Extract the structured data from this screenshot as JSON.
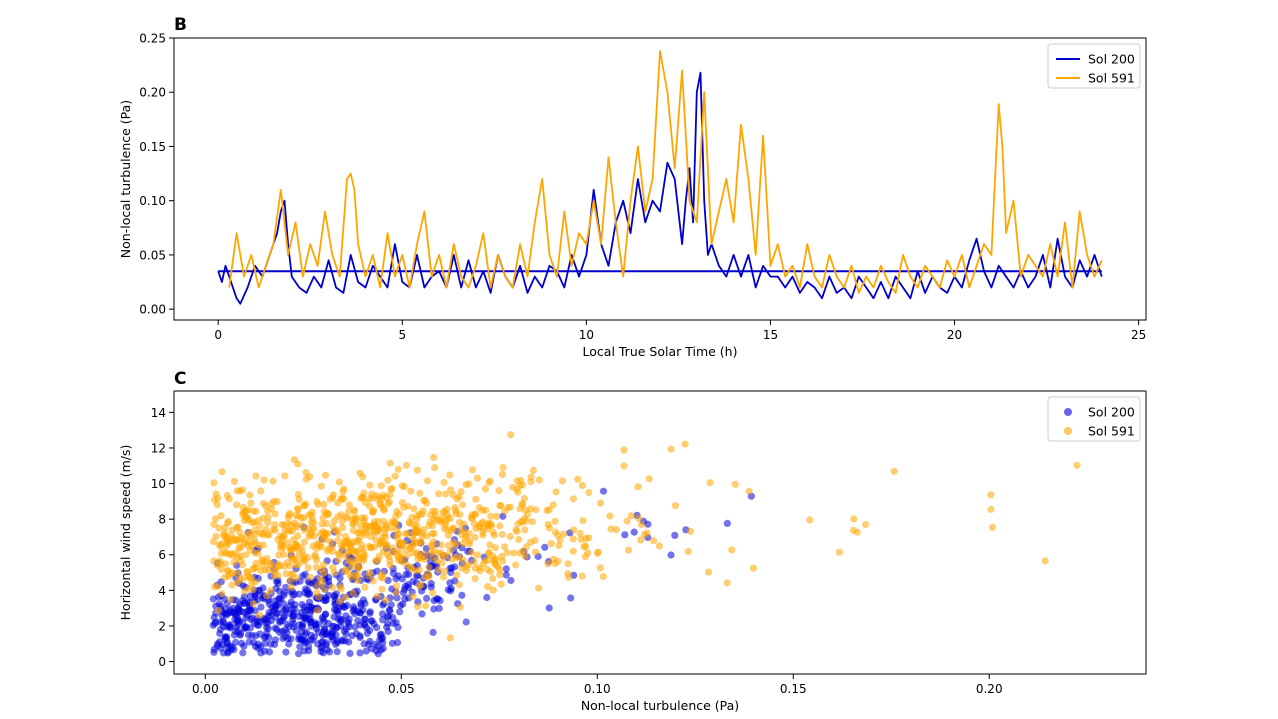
{
  "chart_data": [
    {
      "panel_label": "B",
      "type": "line",
      "xlabel": "Local True Solar Time (h)",
      "ylabel": "Non-local turbulence (Pa)",
      "xlim": [
        -1.2,
        25.2
      ],
      "ylim": [
        -0.01,
        0.25
      ],
      "xticks": [
        "0",
        "5",
        "10",
        "15",
        "20",
        "25"
      ],
      "yticks": [
        "0.00",
        "0.05",
        "0.10",
        "0.15",
        "0.20",
        "0.25"
      ],
      "grid": false,
      "legend_position": "top-right",
      "series": [
        {
          "name": "Sol 200",
          "color": "#0000cc",
          "x": [
            0,
            0.1,
            0.2,
            0.3,
            0.4,
            0.5,
            0.6,
            0.8,
            1.0,
            1.2,
            1.4,
            1.6,
            1.7,
            1.8,
            1.9,
            2.0,
            2.2,
            2.4,
            2.6,
            2.8,
            3.0,
            3.2,
            3.4,
            3.6,
            3.8,
            4.0,
            4.2,
            4.4,
            4.6,
            4.8,
            5.0,
            5.2,
            5.4,
            5.6,
            5.8,
            6.0,
            6.2,
            6.4,
            6.6,
            6.8,
            7.0,
            7.2,
            7.4,
            7.6,
            7.8,
            8.0,
            8.2,
            8.4,
            8.6,
            8.8,
            9.0,
            9.2,
            9.4,
            9.6,
            9.8,
            10.0,
            10.2,
            10.4,
            10.6,
            10.8,
            11.0,
            11.2,
            11.4,
            11.6,
            11.8,
            12.0,
            12.2,
            12.4,
            12.6,
            12.7,
            12.8,
            12.9,
            13.0,
            13.1,
            13.2,
            13.3,
            13.4,
            13.6,
            13.8,
            14.0,
            14.2,
            14.4,
            14.6,
            14.8,
            15.0,
            15.2,
            15.4,
            15.6,
            15.8,
            16.0,
            16.2,
            16.4,
            16.6,
            16.8,
            17.0,
            17.2,
            17.4,
            17.6,
            17.8,
            18.0,
            18.2,
            18.4,
            18.6,
            18.8,
            19.0,
            19.2,
            19.4,
            19.6,
            19.8,
            20.0,
            20.2,
            20.4,
            20.6,
            20.8,
            21.0,
            21.2,
            21.4,
            21.6,
            21.8,
            22.0,
            22.2,
            22.4,
            22.6,
            22.8,
            23.0,
            23.2,
            23.4,
            23.6,
            23.8,
            24.0
          ],
          "y": [
            0.035,
            0.025,
            0.04,
            0.03,
            0.02,
            0.01,
            0.005,
            0.02,
            0.04,
            0.03,
            0.05,
            0.07,
            0.09,
            0.1,
            0.06,
            0.03,
            0.02,
            0.015,
            0.03,
            0.02,
            0.045,
            0.02,
            0.015,
            0.05,
            0.025,
            0.02,
            0.04,
            0.03,
            0.02,
            0.06,
            0.025,
            0.02,
            0.05,
            0.02,
            0.03,
            0.035,
            0.02,
            0.05,
            0.02,
            0.045,
            0.02,
            0.035,
            0.015,
            0.05,
            0.03,
            0.02,
            0.04,
            0.015,
            0.03,
            0.02,
            0.04,
            0.035,
            0.02,
            0.05,
            0.03,
            0.05,
            0.11,
            0.06,
            0.04,
            0.08,
            0.1,
            0.07,
            0.12,
            0.08,
            0.1,
            0.09,
            0.135,
            0.12,
            0.06,
            0.1,
            0.13,
            0.08,
            0.2,
            0.218,
            0.1,
            0.05,
            0.06,
            0.04,
            0.03,
            0.05,
            0.03,
            0.05,
            0.02,
            0.04,
            0.03,
            0.03,
            0.02,
            0.03,
            0.015,
            0.025,
            0.02,
            0.01,
            0.03,
            0.015,
            0.02,
            0.01,
            0.03,
            0.02,
            0.01,
            0.025,
            0.01,
            0.03,
            0.02,
            0.01,
            0.035,
            0.015,
            0.03,
            0.02,
            0.015,
            0.03,
            0.02,
            0.045,
            0.065,
            0.035,
            0.02,
            0.04,
            0.03,
            0.02,
            0.035,
            0.02,
            0.03,
            0.05,
            0.02,
            0.065,
            0.03,
            0.02,
            0.045,
            0.03,
            0.05,
            0.03
          ],
          "baseline": 0.035
        },
        {
          "name": "Sol 591",
          "color": "#ffa500",
          "x": [
            0.3,
            0.5,
            0.7,
            0.9,
            1.1,
            1.3,
            1.5,
            1.7,
            1.9,
            2.1,
            2.3,
            2.5,
            2.7,
            2.9,
            3.1,
            3.3,
            3.5,
            3.6,
            3.7,
            3.8,
            4.0,
            4.2,
            4.4,
            4.6,
            4.8,
            5.0,
            5.2,
            5.4,
            5.6,
            5.8,
            6.0,
            6.2,
            6.4,
            6.6,
            6.8,
            7.0,
            7.2,
            7.4,
            7.6,
            7.8,
            8.0,
            8.2,
            8.4,
            8.6,
            8.8,
            9.0,
            9.2,
            9.4,
            9.6,
            9.8,
            10.0,
            10.2,
            10.4,
            10.6,
            10.8,
            11.0,
            11.2,
            11.4,
            11.6,
            11.8,
            12.0,
            12.2,
            12.4,
            12.6,
            12.8,
            13.0,
            13.2,
            13.4,
            13.6,
            13.8,
            14.0,
            14.2,
            14.4,
            14.6,
            14.8,
            15.0,
            15.2,
            15.4,
            15.6,
            15.8,
            16.0,
            16.2,
            16.4,
            16.6,
            16.8,
            17.0,
            17.2,
            17.4,
            17.6,
            17.8,
            18.0,
            18.2,
            18.4,
            18.6,
            18.8,
            19.0,
            19.2,
            19.4,
            19.6,
            19.8,
            20.0,
            20.2,
            20.4,
            20.6,
            20.8,
            21.0,
            21.1,
            21.2,
            21.3,
            21.4,
            21.6,
            21.8,
            22.0,
            22.2,
            22.4,
            22.6,
            22.8,
            23.0,
            23.2,
            23.4,
            23.6,
            23.8,
            24.0
          ],
          "y": [
            0.02,
            0.07,
            0.03,
            0.05,
            0.02,
            0.04,
            0.06,
            0.11,
            0.05,
            0.08,
            0.03,
            0.06,
            0.04,
            0.09,
            0.05,
            0.03,
            0.12,
            0.125,
            0.11,
            0.06,
            0.03,
            0.05,
            0.02,
            0.07,
            0.03,
            0.05,
            0.02,
            0.06,
            0.09,
            0.03,
            0.05,
            0.02,
            0.06,
            0.03,
            0.02,
            0.04,
            0.07,
            0.02,
            0.05,
            0.03,
            0.02,
            0.06,
            0.03,
            0.08,
            0.12,
            0.05,
            0.03,
            0.09,
            0.04,
            0.07,
            0.06,
            0.1,
            0.06,
            0.14,
            0.08,
            0.03,
            0.1,
            0.15,
            0.09,
            0.12,
            0.238,
            0.2,
            0.13,
            0.22,
            0.1,
            0.08,
            0.2,
            0.06,
            0.09,
            0.12,
            0.08,
            0.17,
            0.12,
            0.05,
            0.16,
            0.04,
            0.06,
            0.03,
            0.04,
            0.02,
            0.06,
            0.03,
            0.02,
            0.05,
            0.03,
            0.02,
            0.04,
            0.015,
            0.03,
            0.02,
            0.04,
            0.025,
            0.015,
            0.05,
            0.03,
            0.02,
            0.04,
            0.03,
            0.02,
            0.045,
            0.03,
            0.05,
            0.02,
            0.04,
            0.06,
            0.05,
            0.12,
            0.189,
            0.15,
            0.07,
            0.1,
            0.03,
            0.05,
            0.04,
            0.03,
            0.06,
            0.03,
            0.08,
            0.02,
            0.09,
            0.05,
            0.03,
            0.045
          ]
        }
      ]
    },
    {
      "panel_label": "C",
      "type": "scatter",
      "xlabel": "Non-local turbulence (Pa)",
      "ylabel": "Horizontal wind speed (m/s)",
      "xlim": [
        -0.008,
        0.24
      ],
      "ylim": [
        -0.7,
        15.2
      ],
      "xticks": [
        "0.00",
        "0.05",
        "0.10",
        "0.15",
        "0.20"
      ],
      "yticks": [
        "0",
        "2",
        "4",
        "6",
        "8",
        "10",
        "12",
        "14"
      ],
      "grid": false,
      "legend_position": "top-right",
      "series": [
        {
          "name": "Sol 200",
          "color": "#0000dd",
          "generator": {
            "seed": 7,
            "n": 650,
            "x_mean": 0.03,
            "x_sd": 0.02,
            "x_max": 0.21,
            "y_base": 2.5,
            "y_slope": 40,
            "y_sd": 1.4,
            "y_max": 12.5
          }
        },
        {
          "name": "Sol 591",
          "color": "#ffa500",
          "generator": {
            "seed": 13,
            "n": 900,
            "x_mean": 0.04,
            "x_sd": 0.03,
            "x_max": 0.236,
            "y_base": 6.5,
            "y_slope": 12,
            "y_sd": 1.6,
            "y_max": 14.5
          }
        }
      ]
    }
  ]
}
